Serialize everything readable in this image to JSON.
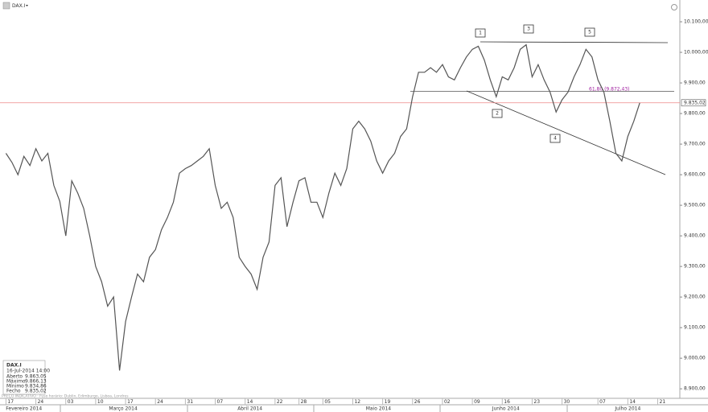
{
  "header": {
    "symbol": "DAX.I"
  },
  "chart_data": {
    "type": "line",
    "color": "#555555",
    "values": [
      9670,
      9640,
      9600,
      9660,
      9630,
      9685,
      9645,
      9670,
      9565,
      9513,
      9400,
      9580,
      9540,
      9490,
      9400,
      9300,
      9250,
      9170,
      9200,
      8960,
      9120,
      9200,
      9275,
      9250,
      9330,
      9355,
      9420,
      9460,
      9510,
      9605,
      9620,
      9630,
      9645,
      9660,
      9685,
      9565,
      9490,
      9510,
      9460,
      9330,
      9300,
      9275,
      9225,
      9330,
      9380,
      9565,
      9590,
      9430,
      9510,
      9580,
      9590,
      9510,
      9510,
      9460,
      9540,
      9605,
      9565,
      9620,
      9750,
      9775,
      9750,
      9710,
      9645,
      9605,
      9645,
      9670,
      9725,
      9750,
      9855,
      9935,
      9935,
      9950,
      9935,
      9960,
      9920,
      9910,
      9950,
      9985,
      10010,
      10020,
      9975,
      9910,
      9855,
      9920,
      9910,
      9950,
      10010,
      10025,
      9920,
      9960,
      9910,
      9870,
      9805,
      9845,
      9870,
      9920,
      9960,
      10010,
      9985,
      9910,
      9870,
      9775,
      9670,
      9645,
      9725,
      9775,
      9835.02
    ],
    "xlim": [
      -1,
      112.7
    ],
    "xticks": [
      {
        "value": 0,
        "label": "17"
      },
      {
        "value": 5,
        "label": "24"
      },
      {
        "value": 10,
        "label": "03"
      },
      {
        "value": 15,
        "label": "10"
      },
      {
        "value": 20,
        "label": "17"
      },
      {
        "value": 25,
        "label": "24"
      },
      {
        "value": 30,
        "label": "31"
      },
      {
        "value": 35,
        "label": "07"
      },
      {
        "value": 40,
        "label": "14"
      },
      {
        "value": 45,
        "label": "22"
      },
      {
        "value": 49,
        "label": "28"
      },
      {
        "value": 53,
        "label": "05"
      },
      {
        "value": 58,
        "label": "12"
      },
      {
        "value": 63,
        "label": "19"
      },
      {
        "value": 68,
        "label": "26"
      },
      {
        "value": 73,
        "label": "02"
      },
      {
        "value": 78,
        "label": "09"
      },
      {
        "value": 83,
        "label": "16"
      },
      {
        "value": 88,
        "label": "23"
      },
      {
        "value": 93,
        "label": "30"
      },
      {
        "value": 99,
        "label": "07"
      },
      {
        "value": 104,
        "label": "14"
      },
      {
        "value": 109,
        "label": "21"
      }
    ],
    "month_ticks": [
      {
        "value": 3,
        "label": "Fevereiro 2014"
      },
      {
        "value": 19.6,
        "label": "Março 2014"
      },
      {
        "value": 40.8,
        "label": "Abril 2014"
      },
      {
        "value": 62.3,
        "label": "Maio 2014"
      },
      {
        "value": 83.6,
        "label": "Junho 2014"
      },
      {
        "value": 104,
        "label": "Julho 2014"
      }
    ],
    "ylim": [
      8882,
      10158
    ],
    "yticks": [
      {
        "value": 8900,
        "label": "8.900,00"
      },
      {
        "value": 9000,
        "label": "9.000,00"
      },
      {
        "value": 9100,
        "label": "9.100,00"
      },
      {
        "value": 9200,
        "label": "9.200,00"
      },
      {
        "value": 9300,
        "label": "9.300,00"
      },
      {
        "value": 9400,
        "label": "9.400,00"
      },
      {
        "value": 9500,
        "label": "9.500,00"
      },
      {
        "value": 9600,
        "label": "9.600,00"
      },
      {
        "value": 9700,
        "label": "9.700,00"
      },
      {
        "value": 9800,
        "label": "9.800,00"
      },
      {
        "value": 9900,
        "label": "9.900,00"
      },
      {
        "value": 10000,
        "label": "10.000,00"
      },
      {
        "value": 10100,
        "label": "10.100,00"
      }
    ],
    "last_price": {
      "value": 9835.02,
      "label": "9.835,02"
    },
    "fib_level": {
      "value": 9872.43,
      "label": "61,80 (9.872,43)"
    },
    "pattern_labels": [
      "1",
      "2",
      "3",
      "4",
      "5"
    ]
  },
  "info_box": {
    "title": "DAX.I",
    "datetime": "16-Jul-2014 14:00",
    "rows": [
      [
        "Aberto",
        "9.863,05"
      ],
      [
        "Máximo",
        "9.866,13"
      ],
      [
        "Mínimo",
        "9.834,86"
      ],
      [
        "Fecho",
        "9.835,02"
      ]
    ]
  },
  "footer": "PREÇO INDICATIVO · Fuso horário: Dublin, Edimburgo, Lisboa, Londres"
}
